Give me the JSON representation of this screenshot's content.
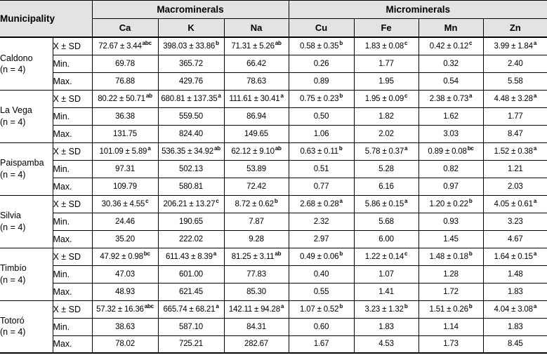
{
  "colors": {
    "header_bg": "#e3e3e3",
    "border": "#000000",
    "background": "#ffffff"
  },
  "table": {
    "header": {
      "municipality": "Municipality",
      "macro_group": "Macrominerals",
      "micro_group": "Microminerals",
      "macro_columns": [
        "Ca",
        "K",
        "Na"
      ],
      "micro_columns": [
        "Cu",
        "Fe",
        "Mn",
        "Zn"
      ]
    },
    "stat_labels": [
      "X ± SD",
      "Min.",
      "Max."
    ],
    "municipalities": [
      {
        "name": "Caldono",
        "n_label": "(n = 4)",
        "mean_sd": [
          {
            "value": "72.67 ± 3.44",
            "sup": "abc"
          },
          {
            "value": "398.03 ± 33.86",
            "sup": "b"
          },
          {
            "value": "71.31 ± 5.26",
            "sup": "ab"
          },
          {
            "value": "0.58 ± 0.35",
            "sup": "b"
          },
          {
            "value": "1.83 ± 0.08",
            "sup": "c"
          },
          {
            "value": "0.42 ± 0.12",
            "sup": "c"
          },
          {
            "value": "3.99 ± 1.84",
            "sup": "a"
          }
        ],
        "min": [
          "69.78",
          "365.72",
          "66.42",
          "0.26",
          "1.77",
          "0.32",
          "2.40"
        ],
        "max": [
          "76.88",
          "429.76",
          "78.63",
          "0.89",
          "1.95",
          "0.54",
          "5.58"
        ]
      },
      {
        "name": "La Vega",
        "n_label": "(n = 4)",
        "mean_sd": [
          {
            "value": "80.22 ± 50.71",
            "sup": "ab"
          },
          {
            "value": "680.81 ± 137.35",
            "sup": "a"
          },
          {
            "value": "111.61 ± 30.41",
            "sup": "a"
          },
          {
            "value": "0.75 ± 0.23",
            "sup": "b"
          },
          {
            "value": "1.95 ± 0.09",
            "sup": "c"
          },
          {
            "value": "2.38 ± 0.73",
            "sup": "a"
          },
          {
            "value": "4.48 ± 3.28",
            "sup": "a"
          }
        ],
        "min": [
          "36.38",
          "559.50",
          "86.94",
          "0.50",
          "1.82",
          "1.62",
          "1.77"
        ],
        "max": [
          "131.75",
          "824.40",
          "149.65",
          "1.06",
          "2.02",
          "3.03",
          "8.47"
        ]
      },
      {
        "name": "Paispamba",
        "n_label": "(n = 4)",
        "mean_sd": [
          {
            "value": "101.09 ± 5.89",
            "sup": "a"
          },
          {
            "value": "536.35 ± 34.92",
            "sup": "ab"
          },
          {
            "value": "62.12 ± 9.10",
            "sup": "ab"
          },
          {
            "value": "0.63 ± 0.11",
            "sup": "b"
          },
          {
            "value": "5.78 ± 0.37",
            "sup": "a"
          },
          {
            "value": "0.89 ± 0.08",
            "sup": "bc"
          },
          {
            "value": "1.52 ± 0.38",
            "sup": "a"
          }
        ],
        "min": [
          "97.31",
          "502.13",
          "53.89",
          "0.51",
          "5.28",
          "0.82",
          "1.21"
        ],
        "max": [
          "109.79",
          "580.81",
          "72.42",
          "0.77",
          "6.16",
          "0.97",
          "2.03"
        ]
      },
      {
        "name": "Silvia",
        "n_label": "(n = 4)",
        "mean_sd": [
          {
            "value": "30.36 ± 4.55",
            "sup": "c"
          },
          {
            "value": "206.21 ± 13.27",
            "sup": "c"
          },
          {
            "value": "8.72 ± 0.62",
            "sup": "b"
          },
          {
            "value": "2.68 ± 0.28",
            "sup": "a"
          },
          {
            "value": "5.86 ± 0.15",
            "sup": "a"
          },
          {
            "value": "1.20 ± 0.22",
            "sup": "b"
          },
          {
            "value": "4.05 ± 0.61",
            "sup": "a"
          }
        ],
        "min": [
          "24.46",
          "190.65",
          "7.87",
          "2.32",
          "5.68",
          "0.93",
          "3.23"
        ],
        "max": [
          "35.20",
          "222.02",
          "9.28",
          "2.97",
          "6.00",
          "1.45",
          "4.67"
        ]
      },
      {
        "name": "Timbío",
        "n_label": "(n = 4)",
        "mean_sd": [
          {
            "value": "47.92 ± 0.98",
            "sup": "bc"
          },
          {
            "value": "611.43 ± 8.39",
            "sup": "a"
          },
          {
            "value": "81.25 ± 3.11",
            "sup": "ab"
          },
          {
            "value": "0.49 ± 0.06",
            "sup": "b"
          },
          {
            "value": "1.22 ± 0.14",
            "sup": "c"
          },
          {
            "value": "1.48 ± 0.18",
            "sup": "b"
          },
          {
            "value": "1.64 ± 0.15",
            "sup": "a"
          }
        ],
        "min": [
          "47.03",
          "601.00",
          "77.83",
          "0.40",
          "1.07",
          "1.28",
          "1.48"
        ],
        "max": [
          "48.93",
          "621.45",
          "85.30",
          "0.55",
          "1.41",
          "1.72",
          "1.83"
        ]
      },
      {
        "name": "Totoró",
        "n_label": "(n = 4)",
        "mean_sd": [
          {
            "value": "57.32 ± 16.36",
            "sup": "abc"
          },
          {
            "value": "665.74 ± 68.21",
            "sup": "a"
          },
          {
            "value": "142.11 ± 94.28",
            "sup": "a"
          },
          {
            "value": "1.07 ± 0.52",
            "sup": "b"
          },
          {
            "value": "3.23 ± 1.32",
            "sup": "b"
          },
          {
            "value": "1.51 ± 0.26",
            "sup": "b"
          },
          {
            "value": "4.04 ± 3.08",
            "sup": "a"
          }
        ],
        "min": [
          "38.63",
          "587.10",
          "84.31",
          "0.60",
          "1.83",
          "1.14",
          "1.83"
        ],
        "max": [
          "78.02",
          "725.21",
          "282.67",
          "1.67",
          "4.53",
          "1.73",
          "8.45"
        ]
      }
    ]
  }
}
